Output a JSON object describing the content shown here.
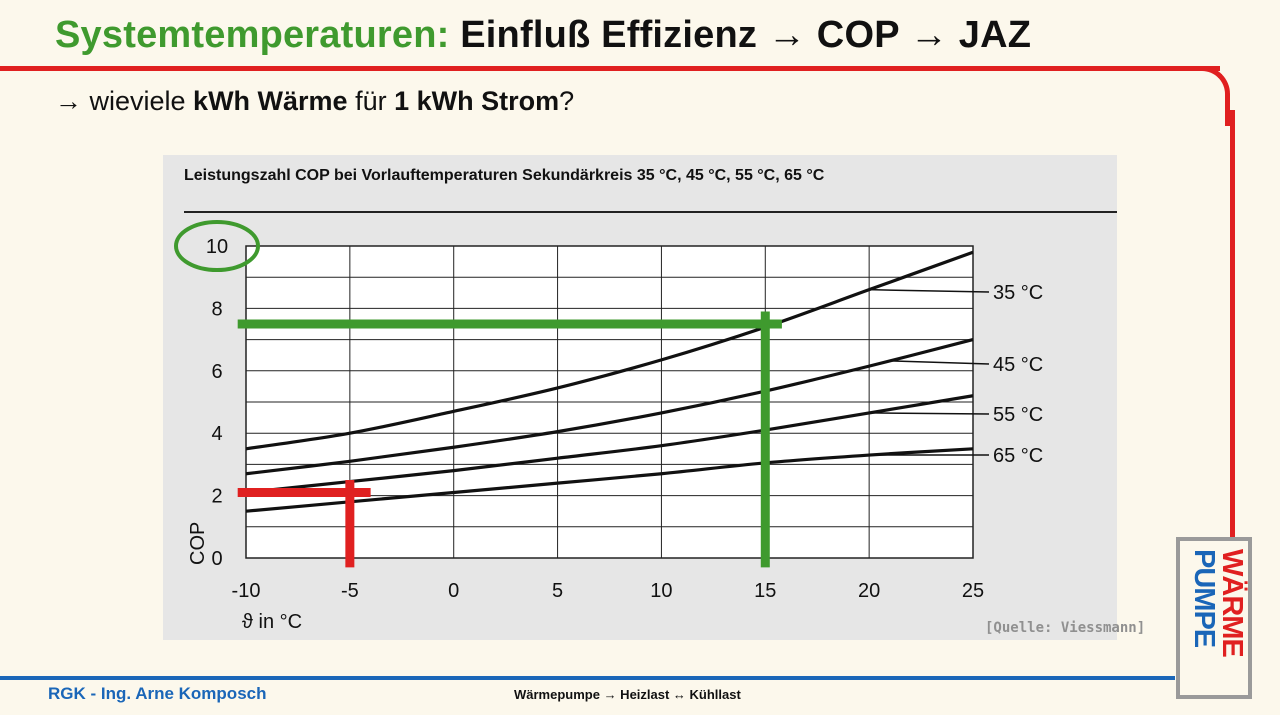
{
  "header": {
    "title_highlight": "Systemtemperaturen:",
    "title_rest": " Einfluß Effizienz → COP → JAZ",
    "subtitle_prefix": "→ wieviele ",
    "subtitle_bold1": "kWh Wärme",
    "subtitle_mid": " für ",
    "subtitle_bold2": "1 kWh Strom",
    "subtitle_suffix": "?"
  },
  "chart_data": {
    "type": "line",
    "title": "Leistungszahl COP bei Vorlauftemperaturen Sekundärkreis 35 °C, 45 °C, 55 °C, 65 °C",
    "xlabel": "ϑ in °C",
    "ylabel": "COP",
    "xlim": [
      -10,
      25
    ],
    "ylim": [
      0,
      10
    ],
    "x_ticks": [
      -10,
      -5,
      0,
      5,
      10,
      15,
      20,
      25
    ],
    "y_ticks": [
      0,
      2,
      4,
      6,
      8,
      10
    ],
    "grid": true,
    "x": [
      -10,
      -5,
      0,
      5,
      10,
      15,
      20,
      25
    ],
    "series": [
      {
        "name": "35 °C",
        "values": [
          3.5,
          4.0,
          4.7,
          5.45,
          6.35,
          7.4,
          8.6,
          9.8
        ]
      },
      {
        "name": "45 °C",
        "values": [
          2.7,
          3.1,
          3.55,
          4.05,
          4.65,
          5.35,
          6.15,
          7.0
        ]
      },
      {
        "name": "55 °C",
        "values": [
          2.1,
          2.45,
          2.8,
          3.2,
          3.6,
          4.1,
          4.65,
          5.2
        ]
      },
      {
        "name": "65 °C",
        "values": [
          1.5,
          1.8,
          2.1,
          2.4,
          2.7,
          3.05,
          3.3,
          3.5
        ]
      }
    ],
    "annotations": [
      {
        "type": "highlight",
        "color": "#e02020",
        "x": -5,
        "y": 2.1,
        "x_extent": [
          -10.4,
          -4.0
        ],
        "y_extent": [
          -0.3,
          2.5
        ]
      },
      {
        "type": "highlight",
        "color": "#3f9a2e",
        "x": 15,
        "y": 7.5,
        "x_extent": [
          -10.4,
          15.8
        ],
        "y_extent": [
          -0.3,
          7.9
        ]
      },
      {
        "type": "circle",
        "color": "#3f9a2e",
        "target": "y_tick",
        "value": 10
      }
    ]
  },
  "source_note": "[Quelle: Viessmann]",
  "logo": {
    "line1": "WÄRME",
    "line2": "PUMPE"
  },
  "footer": {
    "left": "RGK - Ing. Arne Komposch",
    "center": "Wärmepumpe → Heizlast ↔ Kühllast"
  },
  "colors": {
    "accent_green": "#3f9a2e",
    "accent_red": "#e02020",
    "accent_blue": "#1a66b8",
    "chart_panel": "#e6e6e6"
  }
}
